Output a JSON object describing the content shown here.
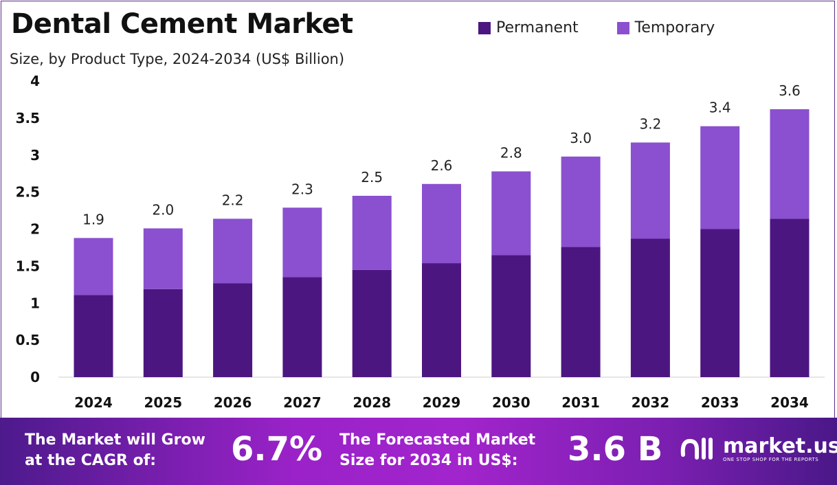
{
  "colors": {
    "permanent": "#4c1680",
    "temporary": "#8a50cf",
    "footer": "#9a22c8"
  },
  "chart_data": {
    "type": "bar",
    "stacked": true,
    "title": "Dental Cement Market",
    "subtitle": "Size, by Product Type, 2024-2034 (US$ Billion)",
    "xlabel": "",
    "ylabel": "",
    "ylim": [
      0,
      4
    ],
    "yticks": [
      "0",
      "0.5",
      "1",
      "1.5",
      "2",
      "2.5",
      "3",
      "3.5",
      "4"
    ],
    "grid": false,
    "legend_position": "top-right",
    "categories": [
      "2024",
      "2025",
      "2026",
      "2027",
      "2028",
      "2029",
      "2030",
      "2031",
      "2032",
      "2033",
      "2034"
    ],
    "series": [
      {
        "name": "Permanent",
        "values": [
          1.11,
          1.19,
          1.27,
          1.35,
          1.45,
          1.54,
          1.65,
          1.76,
          1.87,
          2.0,
          2.14
        ]
      },
      {
        "name": "Temporary",
        "values": [
          0.77,
          0.82,
          0.87,
          0.94,
          1.0,
          1.07,
          1.13,
          1.22,
          1.3,
          1.39,
          1.48
        ]
      }
    ],
    "total_labels": [
      "1.9",
      "2.0",
      "2.2",
      "2.3",
      "2.5",
      "2.6",
      "2.8",
      "3.0",
      "3.2",
      "3.4",
      "3.6"
    ]
  },
  "footer": {
    "cagr_text_1": "The Market will Grow",
    "cagr_text_2": "at the CAGR of:",
    "cagr_value": "6.7%",
    "forecast_text_1": "The Forecasted Market",
    "forecast_text_2": "Size for 2034 in US$:",
    "forecast_value": "3.6 B",
    "logo_name": "market.us",
    "logo_tagline": "ONE STOP SHOP FOR THE REPORTS"
  }
}
